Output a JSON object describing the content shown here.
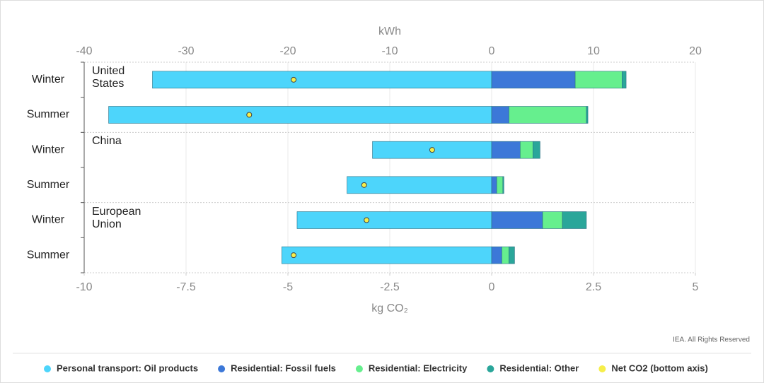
{
  "chart_data": {
    "type": "stacked-bar-horizontal",
    "x_title": "kWh",
    "x2_title": "kg CO₂",
    "categories": [
      "Winter",
      "Summer",
      "Winter",
      "Summer",
      "Winter",
      "Summer"
    ],
    "groups": [
      "United States",
      "China",
      "European Union"
    ],
    "xlim": [
      -40,
      20
    ],
    "xticks": [
      -40,
      -30,
      -20,
      -10,
      0,
      10,
      20
    ],
    "x2lim": [
      -10,
      5
    ],
    "x2ticks": [
      -10,
      -7.5,
      -5,
      -2.5,
      0,
      2.5,
      5
    ],
    "grid": true,
    "series": [
      {
        "name": "Personal transport: Oil products",
        "color": "#4dd5fb",
        "values": [
          -33.3,
          -37.6,
          -11.7,
          -14.2,
          -19.1,
          -20.6
        ]
      },
      {
        "name": "Residential: Fossil fuels",
        "color": "#3c78d8",
        "values": [
          8.2,
          1.7,
          2.8,
          0.5,
          5.0,
          1.0
        ]
      },
      {
        "name": "Residential: Electricity",
        "color": "#66ef8e",
        "values": [
          4.6,
          7.6,
          1.25,
          0.6,
          1.95,
          0.7
        ]
      },
      {
        "name": "Residential: Other",
        "color": "#2aa69a",
        "values": [
          0.4,
          0.15,
          0.7,
          0.1,
          2.35,
          0.55
        ]
      },
      {
        "name": "Net CO2 (bottom axis)",
        "color": "#f6ee4a",
        "axis": "x2",
        "values": [
          -4.86,
          -5.95,
          -1.46,
          -3.13,
          -3.07,
          -4.86
        ]
      }
    ],
    "legend": "bottom",
    "note": "IEA. All Rights Reserved"
  }
}
